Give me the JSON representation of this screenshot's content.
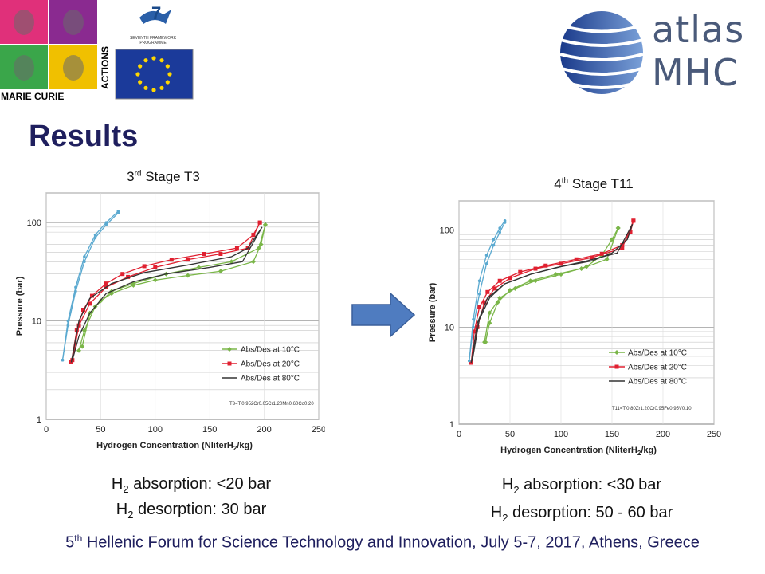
{
  "logos": {
    "marie_curie_text": "MARIE CURIE",
    "actions_text": "ACTIONS",
    "fp7_text_1": "SEVENTH FRAMEWORK",
    "fp7_text_2": "PROGRAMME",
    "atlas_word": "atlas",
    "mhc_word": "MHC"
  },
  "page": {
    "title": "Results",
    "footer_prefix": "5",
    "footer_sup": "th",
    "footer_rest": " Hellenic Forum for Science Technology and Innovation, July 5-7, 2017, Athens, Greece"
  },
  "captions": {
    "left": {
      "line1_a": "H",
      "line1_sub": "2",
      "line1_b": " absorption: <20 bar",
      "line2_a": "H",
      "line2_sub": "2",
      "line2_b": " desorption: 30 bar"
    },
    "right": {
      "line1_a": "H",
      "line1_sub": "2",
      "line1_b": " absorption: <30 bar",
      "line2_a": "H",
      "line2_sub": "2",
      "line2_b": " desorption: 50 - 60 bar"
    }
  },
  "colors": {
    "title": "#1f1f5e",
    "arrow": "#4f7cc0",
    "series_10": "#7ab648",
    "series_20": "#e02030",
    "series_80": "#333333",
    "hydride_curve": "#5aa9d0"
  },
  "chart_data": [
    {
      "type": "scatter",
      "title_prefix": "3",
      "title_sup": "rd",
      "title_rest": " Stage T3",
      "xlabel_a": "Hydrogen Concentration (NliterH",
      "xlabel_sub": "2",
      "xlabel_b": "/kg)",
      "ylabel": "Pressure (bar)",
      "xlim": [
        0,
        250
      ],
      "ylim": [
        1,
        200
      ],
      "yscale": "log",
      "grid": true,
      "legend_position": "bottom-right",
      "x_ticks": [
        "0",
        "50",
        "100",
        "150",
        "200",
        "250"
      ],
      "y_ticks": [
        "1",
        "10",
        "100"
      ],
      "annotation": "T3=Ti0.952Cr0.05Cr1.20Mn0.60Co0.20",
      "series": [
        {
          "name": "Abs/Des at 10°C",
          "color": "#7ab648",
          "marker": "diamond",
          "absorption": {
            "x": [
              33,
              40,
              50,
              60,
              80,
              100,
              130,
              160,
              190,
              197,
              201
            ],
            "y": [
              5.5,
              12,
              16,
              19,
              23,
              26,
              29,
              32,
              40,
              60,
              95
            ]
          },
          "desorption": {
            "x": [
              201,
              195,
              170,
              140,
              110,
              80,
              60,
              45,
              35,
              30
            ],
            "y": [
              95,
              55,
              40,
              35,
              30,
              24,
              20,
              14,
              8,
              5
            ]
          }
        },
        {
          "name": "Abs/Des at 20°C",
          "color": "#e02030",
          "marker": "square",
          "absorption": {
            "x": [
              23,
              28,
              34,
              42,
              55,
              70,
              90,
              115,
              145,
              175,
              190,
              196
            ],
            "y": [
              3.8,
              8,
              13,
              18,
              24,
              30,
              36,
              42,
              48,
              55,
              75,
              100
            ]
          },
          "desorption": {
            "x": [
              196,
              185,
              160,
              130,
              100,
              75,
              55,
              40,
              30,
              24
            ],
            "y": [
              100,
              55,
              48,
              42,
              35,
              28,
              22,
              15,
              9,
              4
            ]
          }
        },
        {
          "name": "Abs/Des at 80°C",
          "color": "#333333",
          "marker": "line",
          "absorption": {
            "x": [
              23,
              30,
              40,
              60,
              90,
              130,
              170,
              185,
              198
            ],
            "y": [
              3.8,
              10,
              17,
              24,
              31,
              37,
              45,
              55,
              90
            ]
          },
          "desorption": {
            "x": [
              198,
              180,
              150,
              110,
              80,
              55,
              40,
              30,
              24
            ],
            "y": [
              90,
              40,
              35,
              30,
              25,
              19,
              12,
              7,
              4
            ]
          }
        },
        {
          "name": "",
          "color": "#5aa9d0",
          "marker": "dot",
          "absorption": {
            "x": [
              15,
              20,
              27,
              35,
              45,
              55,
              66
            ],
            "y": [
              4,
              10,
              22,
              45,
              75,
              100,
              130
            ]
          },
          "desorption": {
            "x": [
              66,
              55,
              45,
              35,
              27,
              20,
              15
            ],
            "y": [
              125,
              95,
              70,
              40,
              20,
              9,
              4
            ]
          }
        }
      ]
    },
    {
      "type": "scatter",
      "title_prefix": "4",
      "title_sup": "th",
      "title_rest": " Stage T11",
      "xlabel_a": "Hydrogen Concentration (NliterH",
      "xlabel_sub": "2",
      "xlabel_b": "/kg)",
      "ylabel": "Pressure (bar)",
      "xlim": [
        0,
        250
      ],
      "ylim": [
        1,
        200
      ],
      "yscale": "log",
      "grid": true,
      "legend_position": "bottom-right",
      "x_ticks": [
        "0",
        "50",
        "100",
        "150",
        "200",
        "250"
      ],
      "y_ticks": [
        "1",
        "10",
        "100"
      ],
      "annotation": "T11=Ti0.80Zr1.20Cr0.95Fe0.95V0.10",
      "series": [
        {
          "name": "Abs/Des at 10°C",
          "color": "#7ab648",
          "marker": "diamond",
          "absorption": {
            "x": [
              25,
              30,
              40,
              55,
              75,
              100,
              125,
              140,
              150,
              156
            ],
            "y": [
              7,
              14,
              20,
              25,
              30,
              35,
              42,
              55,
              80,
              105
            ]
          },
          "desorption": {
            "x": [
              156,
              145,
              120,
              95,
              70,
              50,
              38,
              30,
              26
            ],
            "y": [
              105,
              50,
              40,
              35,
              30,
              24,
              18,
              11,
              7
            ]
          }
        },
        {
          "name": "Abs/Des at 20°C",
          "color": "#e02030",
          "marker": "square",
          "absorption": {
            "x": [
              12,
              15,
              20,
              28,
              40,
              60,
              85,
              115,
              140,
              160,
              168,
              171
            ],
            "y": [
              4.3,
              9,
              16,
              23,
              30,
              37,
              43,
              50,
              57,
              70,
              95,
              125
            ]
          },
          "desorption": {
            "x": [
              171,
              160,
              130,
              100,
              75,
              50,
              35,
              25,
              18,
              12
            ],
            "y": [
              125,
              65,
              52,
              45,
              40,
              32,
              25,
              18,
              10,
              4.3
            ]
          }
        },
        {
          "name": "Abs/Des at 80°C",
          "color": "#333333",
          "marker": "line",
          "absorption": {
            "x": [
              12,
              18,
              28,
              45,
              70,
              100,
              130,
              150,
              165,
              170
            ],
            "y": [
              4.3,
              11,
              20,
              28,
              35,
              42,
              48,
              58,
              80,
              115
            ]
          },
          "desorption": {
            "x": [
              170,
              155,
              125,
              95,
              70,
              45,
              30,
              20,
              13
            ],
            "y": [
              115,
              58,
              48,
              41,
              35,
              28,
              20,
              12,
              4.5
            ]
          }
        },
        {
          "name": "",
          "color": "#5aa9d0",
          "marker": "dot",
          "absorption": {
            "x": [
              10,
              14,
              20,
              27,
              34,
              40,
              45
            ],
            "y": [
              4.5,
              12,
              30,
              55,
              80,
              105,
              125
            ]
          },
          "desorption": {
            "x": [
              45,
              40,
              34,
              27,
              20,
              14,
              10
            ],
            "y": [
              120,
              95,
              70,
              45,
              22,
              10,
              4.5
            ]
          }
        }
      ]
    }
  ]
}
